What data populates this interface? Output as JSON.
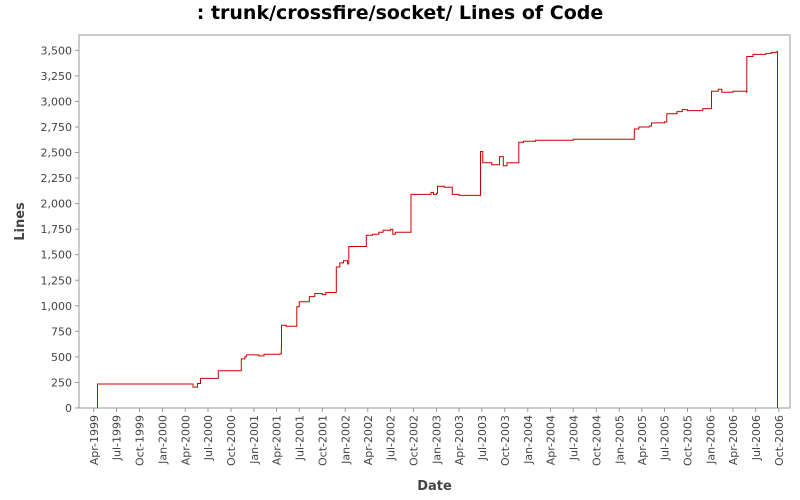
{
  "chart_data": {
    "type": "line",
    "title": ": trunk/crossfire/socket/ Lines of Code",
    "xlabel": "Date",
    "ylabel": "Lines",
    "xlim": [
      "1999-02-01",
      "2006-11-15"
    ],
    "ylim": [
      0,
      3650
    ],
    "step": true,
    "grid": false,
    "legend": "none",
    "line_color": "#cc0000",
    "y_ticks": [
      0,
      250,
      500,
      750,
      1000,
      1250,
      1500,
      1750,
      2000,
      2250,
      2500,
      2750,
      3000,
      3250,
      3500
    ],
    "y_tick_labels": [
      "0",
      "250",
      "500",
      "750",
      "1,000",
      "1,250",
      "1,500",
      "1,750",
      "2,000",
      "2,250",
      "2,500",
      "2,750",
      "3,000",
      "3,250",
      "3,500"
    ],
    "x_ticks": [
      "1999-04-01",
      "1999-07-01",
      "1999-10-01",
      "2000-01-01",
      "2000-04-01",
      "2000-07-01",
      "2000-10-01",
      "2001-01-01",
      "2001-04-01",
      "2001-07-01",
      "2001-10-01",
      "2002-01-01",
      "2002-04-01",
      "2002-07-01",
      "2002-10-01",
      "2003-01-01",
      "2003-04-01",
      "2003-07-01",
      "2003-10-01",
      "2004-01-01",
      "2004-04-01",
      "2004-07-01",
      "2004-10-01",
      "2005-01-01",
      "2005-04-01",
      "2005-07-01",
      "2005-10-01",
      "2006-01-01",
      "2006-04-01",
      "2006-07-01",
      "2006-10-01"
    ],
    "x_tick_labels": [
      "Apr-1999",
      "Jul-1999",
      "Oct-1999",
      "Jan-2000",
      "Apr-2000",
      "Jul-2000",
      "Oct-2000",
      "Jan-2001",
      "Apr-2001",
      "Jul-2001",
      "Oct-2001",
      "Jan-2002",
      "Apr-2002",
      "Jul-2002",
      "Oct-2002",
      "Jan-2003",
      "Apr-2003",
      "Jul-2003",
      "Oct-2003",
      "Jan-2004",
      "Apr-2004",
      "Jul-2004",
      "Oct-2004",
      "Jan-2005",
      "Apr-2005",
      "Jul-2005",
      "Oct-2005",
      "Jan-2006",
      "Apr-2006",
      "Jul-2006",
      "Oct-2006"
    ],
    "series": [
      {
        "points": [
          [
            "1999-04-15",
            0
          ],
          [
            "1999-04-16",
            235
          ],
          [
            "2000-05-01",
            235
          ],
          [
            "2000-05-02",
            205
          ],
          [
            "2000-05-20",
            240
          ],
          [
            "2000-06-01",
            290
          ],
          [
            "2000-08-10",
            290
          ],
          [
            "2000-08-11",
            365
          ],
          [
            "2000-11-10",
            365
          ],
          [
            "2000-11-11",
            480
          ],
          [
            "2000-11-25",
            500
          ],
          [
            "2000-12-01",
            520
          ],
          [
            "2001-01-20",
            510
          ],
          [
            "2001-02-10",
            525
          ],
          [
            "2001-04-15",
            530
          ],
          [
            "2001-04-20",
            580
          ],
          [
            "2001-04-21",
            810
          ],
          [
            "2001-05-10",
            800
          ],
          [
            "2001-06-20",
            800
          ],
          [
            "2001-06-21",
            990
          ],
          [
            "2001-07-01",
            1040
          ],
          [
            "2001-08-10",
            1090
          ],
          [
            "2001-09-01",
            1120
          ],
          [
            "2001-10-01",
            1110
          ],
          [
            "2001-10-15",
            1130
          ],
          [
            "2001-11-25",
            1130
          ],
          [
            "2001-11-26",
            1380
          ],
          [
            "2001-12-10",
            1420
          ],
          [
            "2001-12-25",
            1440
          ],
          [
            "2002-01-10",
            1410
          ],
          [
            "2002-01-15",
            1580
          ],
          [
            "2002-03-25",
            1580
          ],
          [
            "2002-03-26",
            1690
          ],
          [
            "2002-04-20",
            1700
          ],
          [
            "2002-05-15",
            1720
          ],
          [
            "2002-06-01",
            1740
          ],
          [
            "2002-07-01",
            1750
          ],
          [
            "2002-07-10",
            1700
          ],
          [
            "2002-07-20",
            1720
          ],
          [
            "2002-09-20",
            1720
          ],
          [
            "2002-09-21",
            2090
          ],
          [
            "2002-12-01",
            2090
          ],
          [
            "2002-12-10",
            2110
          ],
          [
            "2002-12-20",
            2090
          ],
          [
            "2003-01-01",
            2100
          ],
          [
            "2003-01-05",
            2170
          ],
          [
            "2003-02-01",
            2160
          ],
          [
            "2003-03-01",
            2160
          ],
          [
            "2003-03-05",
            2090
          ],
          [
            "2003-04-01",
            2080
          ],
          [
            "2003-06-25",
            2080
          ],
          [
            "2003-06-26",
            2510
          ],
          [
            "2003-07-05",
            2400
          ],
          [
            "2003-08-10",
            2380
          ],
          [
            "2003-09-10",
            2460
          ],
          [
            "2003-09-25",
            2370
          ],
          [
            "2003-10-10",
            2400
          ],
          [
            "2003-11-25",
            2400
          ],
          [
            "2003-11-26",
            2600
          ],
          [
            "2003-12-15",
            2610
          ],
          [
            "2004-02-01",
            2620
          ],
          [
            "2004-07-01",
            2630
          ],
          [
            "2005-03-01",
            2630
          ],
          [
            "2005-03-02",
            2730
          ],
          [
            "2005-03-20",
            2750
          ],
          [
            "2005-05-01",
            2760
          ],
          [
            "2005-05-10",
            2790
          ],
          [
            "2005-07-01",
            2800
          ],
          [
            "2005-07-10",
            2880
          ],
          [
            "2005-08-20",
            2900
          ],
          [
            "2005-09-10",
            2920
          ],
          [
            "2005-10-01",
            2910
          ],
          [
            "2005-11-20",
            2910
          ],
          [
            "2005-12-01",
            2930
          ],
          [
            "2006-01-01",
            2930
          ],
          [
            "2006-01-05",
            3100
          ],
          [
            "2006-02-01",
            3120
          ],
          [
            "2006-02-15",
            3090
          ],
          [
            "2006-03-20",
            3090
          ],
          [
            "2006-04-01",
            3100
          ],
          [
            "2006-05-25",
            3090
          ],
          [
            "2006-05-26",
            3440
          ],
          [
            "2006-06-20",
            3460
          ],
          [
            "2006-08-10",
            3470
          ],
          [
            "2006-09-01",
            3480
          ],
          [
            "2006-09-25",
            3490
          ],
          [
            "2006-09-26",
            0
          ]
        ]
      }
    ]
  }
}
